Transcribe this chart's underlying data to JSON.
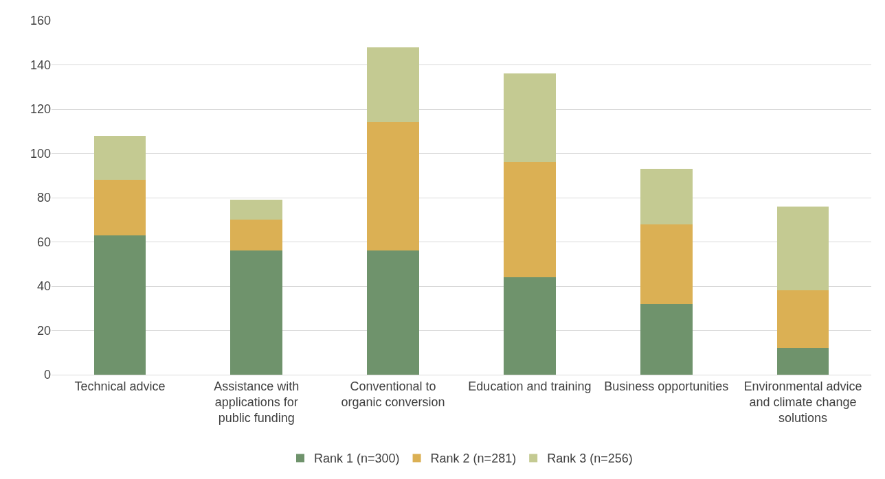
{
  "chart_data": {
    "type": "bar",
    "stacked": true,
    "categories": [
      "Technical advice",
      "Assistance with applications for public funding",
      "Conventional to organic conversion",
      "Education and training",
      "Business opportunities",
      "Environmental advice and climate change solutions"
    ],
    "series": [
      {
        "name": "Rank 1 (n=300)",
        "color": "#6f936c",
        "values": [
          63,
          56,
          56,
          44,
          32,
          12
        ]
      },
      {
        "name": "Rank 2 (n=281)",
        "color": "#dbb054",
        "values": [
          25,
          14,
          58,
          52,
          36,
          26
        ]
      },
      {
        "name": "Rank 3 (n=256)",
        "color": "#c4ca92",
        "values": [
          20,
          9,
          34,
          40,
          25,
          38
        ]
      }
    ],
    "ylim": [
      0,
      160
    ],
    "yticks": [
      0,
      20,
      40,
      60,
      80,
      100,
      120,
      140,
      160
    ],
    "grid": "y",
    "legend": "bottom"
  }
}
